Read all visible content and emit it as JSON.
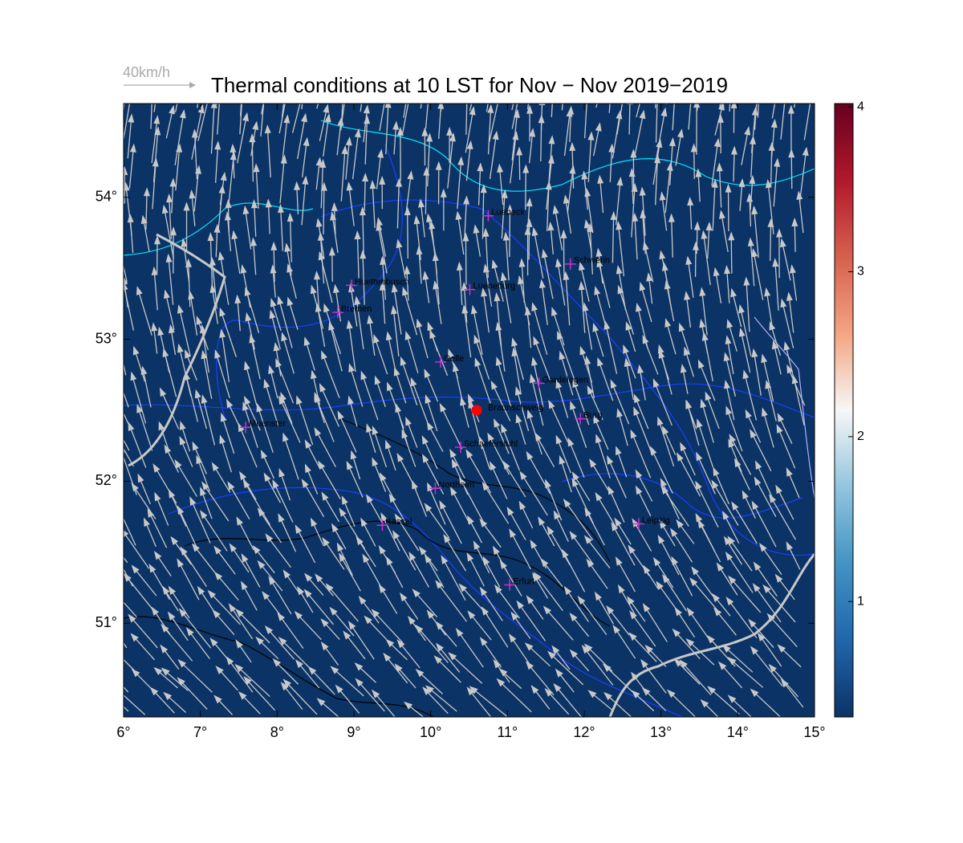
{
  "chart_data": {
    "type": "map",
    "title": "Thermal conditions at 10 LST for Nov − Nov  2019−2019",
    "vector_legend": "40km/h",
    "background": "#0b3366",
    "xlim": [
      6,
      15.0
    ],
    "ylim": [
      50.34,
      54.66
    ],
    "xticks": [
      {
        "value": 6,
        "label": "6°"
      },
      {
        "value": 7,
        "label": "7°"
      },
      {
        "value": 8,
        "label": "8°"
      },
      {
        "value": 9,
        "label": "9°"
      },
      {
        "value": 10,
        "label": "10°"
      },
      {
        "value": 11,
        "label": "11°"
      },
      {
        "value": 12,
        "label": "12°"
      },
      {
        "value": 13,
        "label": "13°"
      },
      {
        "value": 14,
        "label": "14°"
      },
      {
        "value": 15,
        "label": "15°"
      }
    ],
    "yticks": [
      {
        "value": 51,
        "label": "51°"
      },
      {
        "value": 52,
        "label": "52°"
      },
      {
        "value": 53,
        "label": "53°"
      },
      {
        "value": 54,
        "label": "54°"
      }
    ],
    "colorbar": {
      "lim": [
        0.3,
        4.02
      ],
      "ticks": [
        1,
        2,
        3,
        4
      ],
      "colors": [
        "#0b3366",
        "#2166ac",
        "#4393c3",
        "#92c5de",
        "#f7f7f7",
        "#f4a582",
        "#d6604d",
        "#b2182b",
        "#67001f"
      ]
    },
    "station": {
      "name": "Braunschweig",
      "lon": 10.6,
      "lat": 52.5,
      "color": "#ff0000"
    },
    "city_color": "#cc33cc",
    "cities": [
      {
        "name": "Luebeck",
        "lon": 10.75,
        "lat": 53.87
      },
      {
        "name": "Schwerin",
        "lon": 11.82,
        "lat": 53.53
      },
      {
        "name": "Huettenbusch",
        "lon": 8.97,
        "lat": 53.38
      },
      {
        "name": "Lueneburg",
        "lon": 10.51,
        "lat": 53.35
      },
      {
        "name": "Bremen",
        "lon": 8.79,
        "lat": 53.19
      },
      {
        "name": "Celle",
        "lon": 10.13,
        "lat": 52.84
      },
      {
        "name": "Gardelegen",
        "lon": 11.41,
        "lat": 52.69
      },
      {
        "name": "Burg",
        "lon": 11.95,
        "lat": 52.44
      },
      {
        "name": "Muenster",
        "lon": 7.59,
        "lat": 52.38
      },
      {
        "name": "Schaeferstuhl",
        "lon": 10.39,
        "lat": 52.24
      },
      {
        "name": "Northeim",
        "lon": 10.06,
        "lat": 51.95
      },
      {
        "name": "Kassel",
        "lon": 9.37,
        "lat": 51.69
      },
      {
        "name": "Leipzig",
        "lon": 12.71,
        "lat": 51.7
      },
      {
        "name": "Erfurt",
        "lon": 11.03,
        "lat": 51.27
      }
    ]
  }
}
